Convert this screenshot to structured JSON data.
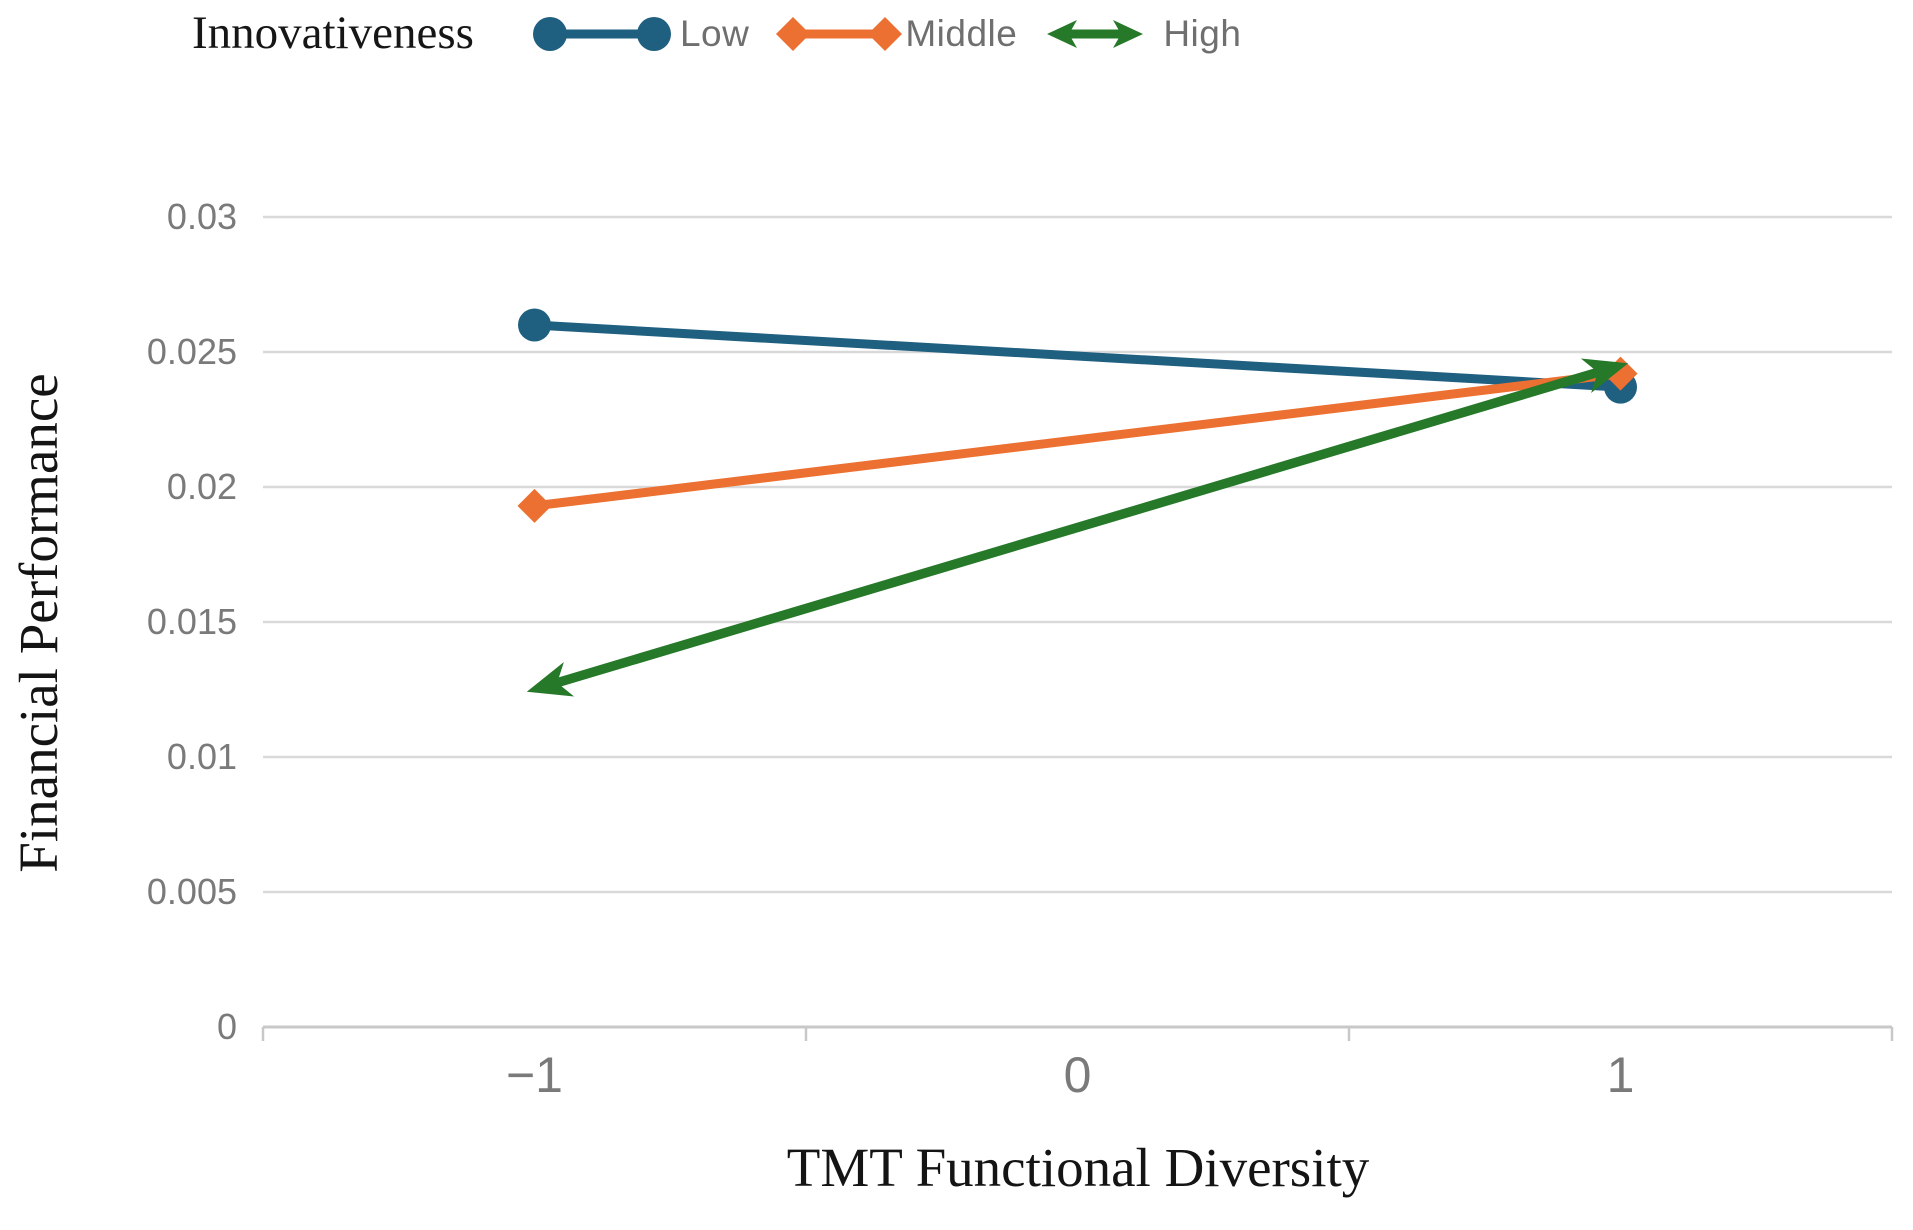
{
  "legend": {
    "title": "Innovativeness"
  },
  "chart_data": {
    "type": "line",
    "title": "",
    "xlabel": "TMT Functional Diversity",
    "ylabel": "Financial Performance",
    "x_categories": [
      "−1",
      "0",
      "1"
    ],
    "x_values": [
      -1,
      1
    ],
    "ylim": [
      0,
      0.03
    ],
    "yticks": [
      {
        "label": "0",
        "value": 0
      },
      {
        "label": "0.005",
        "value": 0.005
      },
      {
        "label": "0.01",
        "value": 0.01
      },
      {
        "label": "0.015",
        "value": 0.015
      },
      {
        "label": "0.02",
        "value": 0.02
      },
      {
        "label": "0.025",
        "value": 0.025
      },
      {
        "label": "0.03",
        "value": 0.03
      }
    ],
    "grid": "horizontal",
    "legend_position": "top-left",
    "series": [
      {
        "name": "Low",
        "marker": "circle",
        "color": "#1F5F80",
        "x": [
          -1,
          1
        ],
        "values": [
          0.026,
          0.0237
        ]
      },
      {
        "name": "Middle",
        "marker": "diamond",
        "color": "#EC7031",
        "x": [
          -1,
          1
        ],
        "values": [
          0.0193,
          0.0242
        ]
      },
      {
        "name": "High",
        "marker": "double-arrow",
        "color": "#27792A",
        "x": [
          -1,
          1
        ],
        "values": [
          0.0125,
          0.0245
        ]
      }
    ],
    "colors": {
      "gridline": "#D9D9D9",
      "axis_line": "#C8C8C8",
      "tick_label": "#7A7A7A",
      "legend_label": "#6F6F6F",
      "title_text": "#141414"
    }
  }
}
